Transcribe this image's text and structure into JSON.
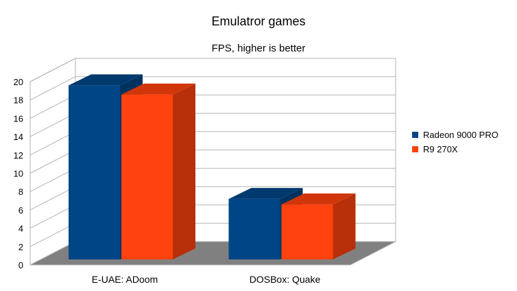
{
  "chart_data": {
    "type": "bar",
    "title": "Emulatror games",
    "subtitle": "FPS, higher is better",
    "categories": [
      "E-UAE: ADoom",
      "DOSBox: Quake"
    ],
    "series": [
      {
        "name": "Radeon 9000 PRO",
        "values": [
          19,
          6.6
        ],
        "color": "#004586"
      },
      {
        "name": "R9 270X",
        "values": [
          18,
          6
        ],
        "color": "#ff420e"
      }
    ],
    "ylim": [
      0,
      20
    ],
    "yticks": [
      "0",
      "2",
      "4",
      "6",
      "8",
      "10",
      "12",
      "14",
      "16",
      "18",
      "20"
    ],
    "grid": true,
    "legend_position": "right",
    "style": "3d",
    "floor_color": "#808080"
  }
}
